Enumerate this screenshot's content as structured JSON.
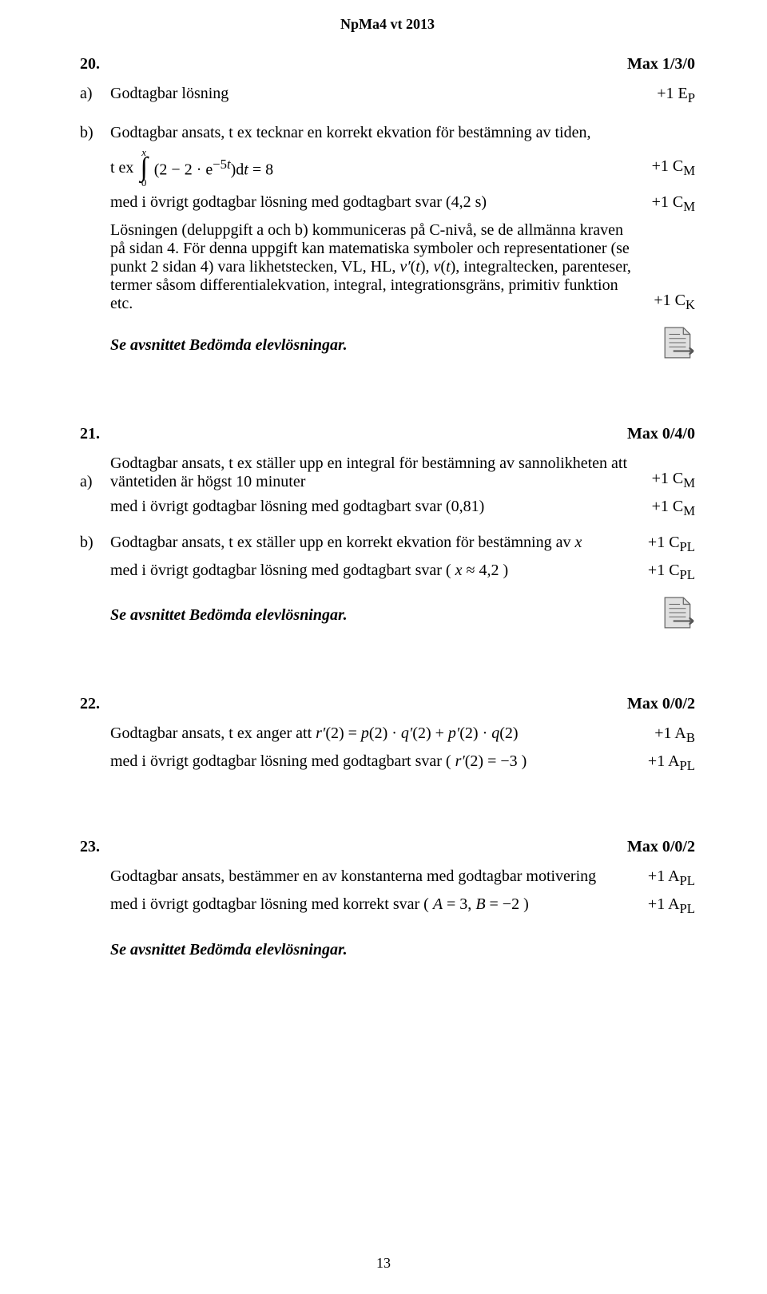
{
  "header": "NpMa4 vt 2013",
  "page_num": "13",
  "see_section": "Se avsnittet Bedömda elevlösningar.",
  "q20": {
    "num": "20.",
    "max": "Max 1/3/0",
    "a": {
      "label": "a)",
      "text": "Godtagbar lösning",
      "points_html": "+1 E<sub>P</sub>"
    },
    "b": {
      "label": "b)",
      "line1": "Godtagbar ansats, t ex tecknar en korrekt ekvation för bestämning av tiden,",
      "tex_prefix": "t ex",
      "int_upper": "x",
      "int_lower": "0",
      "integrand_html": "(2 − 2 · e<sup>−5<span class=\"math\">t</span></sup>)d<span class=\"math\">t</span> = 8",
      "pts1_html": "+1 C<sub>M</sub>",
      "line2": "med i övrigt godtagbar lösning med godtagbart svar (4,2 s)",
      "pts2_html": "+1 C<sub>M</sub>",
      "line3_html": "Lösningen (deluppgift a och b) kommuniceras på C-nivå, se de allmänna kraven på sidan 4. För denna uppgift kan matematiska symboler och representationer (se punkt 2 sidan 4) vara likhetstecken, VL, HL, <span class=\"math\">v′</span>(<span class=\"math\">t</span>), <span class=\"math\">v</span>(<span class=\"math\">t</span>), integraltecken, parenteser, termer såsom differentialekvation, integral, integrationsgräns, primitiv funktion etc.",
      "pts3_html": "+1 C<sub>K</sub>"
    }
  },
  "q21": {
    "num": "21.",
    "max": "Max 0/4/0",
    "a": {
      "label": "a)",
      "line1": "Godtagbar ansats, t ex ställer upp en integral för bestämning av sannolikheten att väntetiden är högst 10 minuter",
      "pts1_html": "+1 C<sub>M</sub>",
      "line2": "med i övrigt godtagbar lösning med godtagbart svar (0,81)",
      "pts2_html": "+1 C<sub>M</sub>"
    },
    "b": {
      "label": "b)",
      "line1_html": "Godtagbar ansats, t ex ställer upp en korrekt ekvation för bestämning av <span class=\"math\">x</span>",
      "pts1_html": "+1 C<sub>PL</sub>",
      "line2_html": "med i övrigt godtagbar lösning med godtagbart svar ( <span class=\"math\">x</span> ≈ 4,2 )",
      "pts2_html": "+1 C<sub>PL</sub>"
    }
  },
  "q22": {
    "num": "22.",
    "max": "Max 0/0/2",
    "line1_html": "Godtagbar ansats, t ex anger att <span class=\"math\">r′</span>(2) = <span class=\"math\">p</span>(2) · <span class=\"math\">q′</span>(2) + <span class=\"math\">p′</span>(2) · <span class=\"math\">q</span>(2)",
    "pts1_html": "+1 A<sub>B</sub>",
    "line2_html": "med i övrigt godtagbar lösning med godtagbart svar ( <span class=\"math\">r′</span>(2) = −3 )",
    "pts2_html": "+1 A<sub>PL</sub>"
  },
  "q23": {
    "num": "23.",
    "max": "Max 0/0/2",
    "line1": "Godtagbar ansats, bestämmer en av konstanterna med godtagbar motivering",
    "pts1_html": "+1 A<sub>PL</sub>",
    "line2_html": "med i övrigt godtagbar lösning med korrekt svar ( <span class=\"math\">A</span> = 3, <span class=\"math\">B</span> = −2 )",
    "pts2_html": "+1 A<sub>PL</sub>"
  },
  "icon": {
    "fill": "#d9d9d9",
    "stroke": "#595959",
    "arrow": "#595959"
  }
}
